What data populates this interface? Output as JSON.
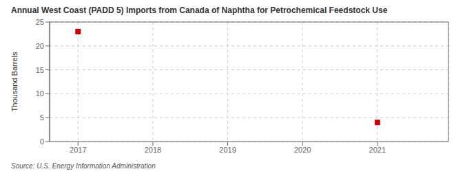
{
  "chart_data": {
    "type": "scatter",
    "title": "Annual West Coast (PADD 5) Imports from Canada of Naphtha for Petrochemical Feedstock Use",
    "ylabel": "Thousand Barrels",
    "source": "Source: U.S. Energy Information Administration",
    "x": [
      2017,
      2021
    ],
    "values": [
      23,
      4
    ],
    "color": "#cc0000",
    "marker": "square",
    "xlim": [
      2016.62,
      2021.95
    ],
    "ylim": [
      0,
      25
    ],
    "xticks": [
      2017,
      2018,
      2019,
      2020,
      2021
    ],
    "yticks": [
      0,
      5,
      10,
      15,
      20,
      25
    ],
    "grid": true
  }
}
